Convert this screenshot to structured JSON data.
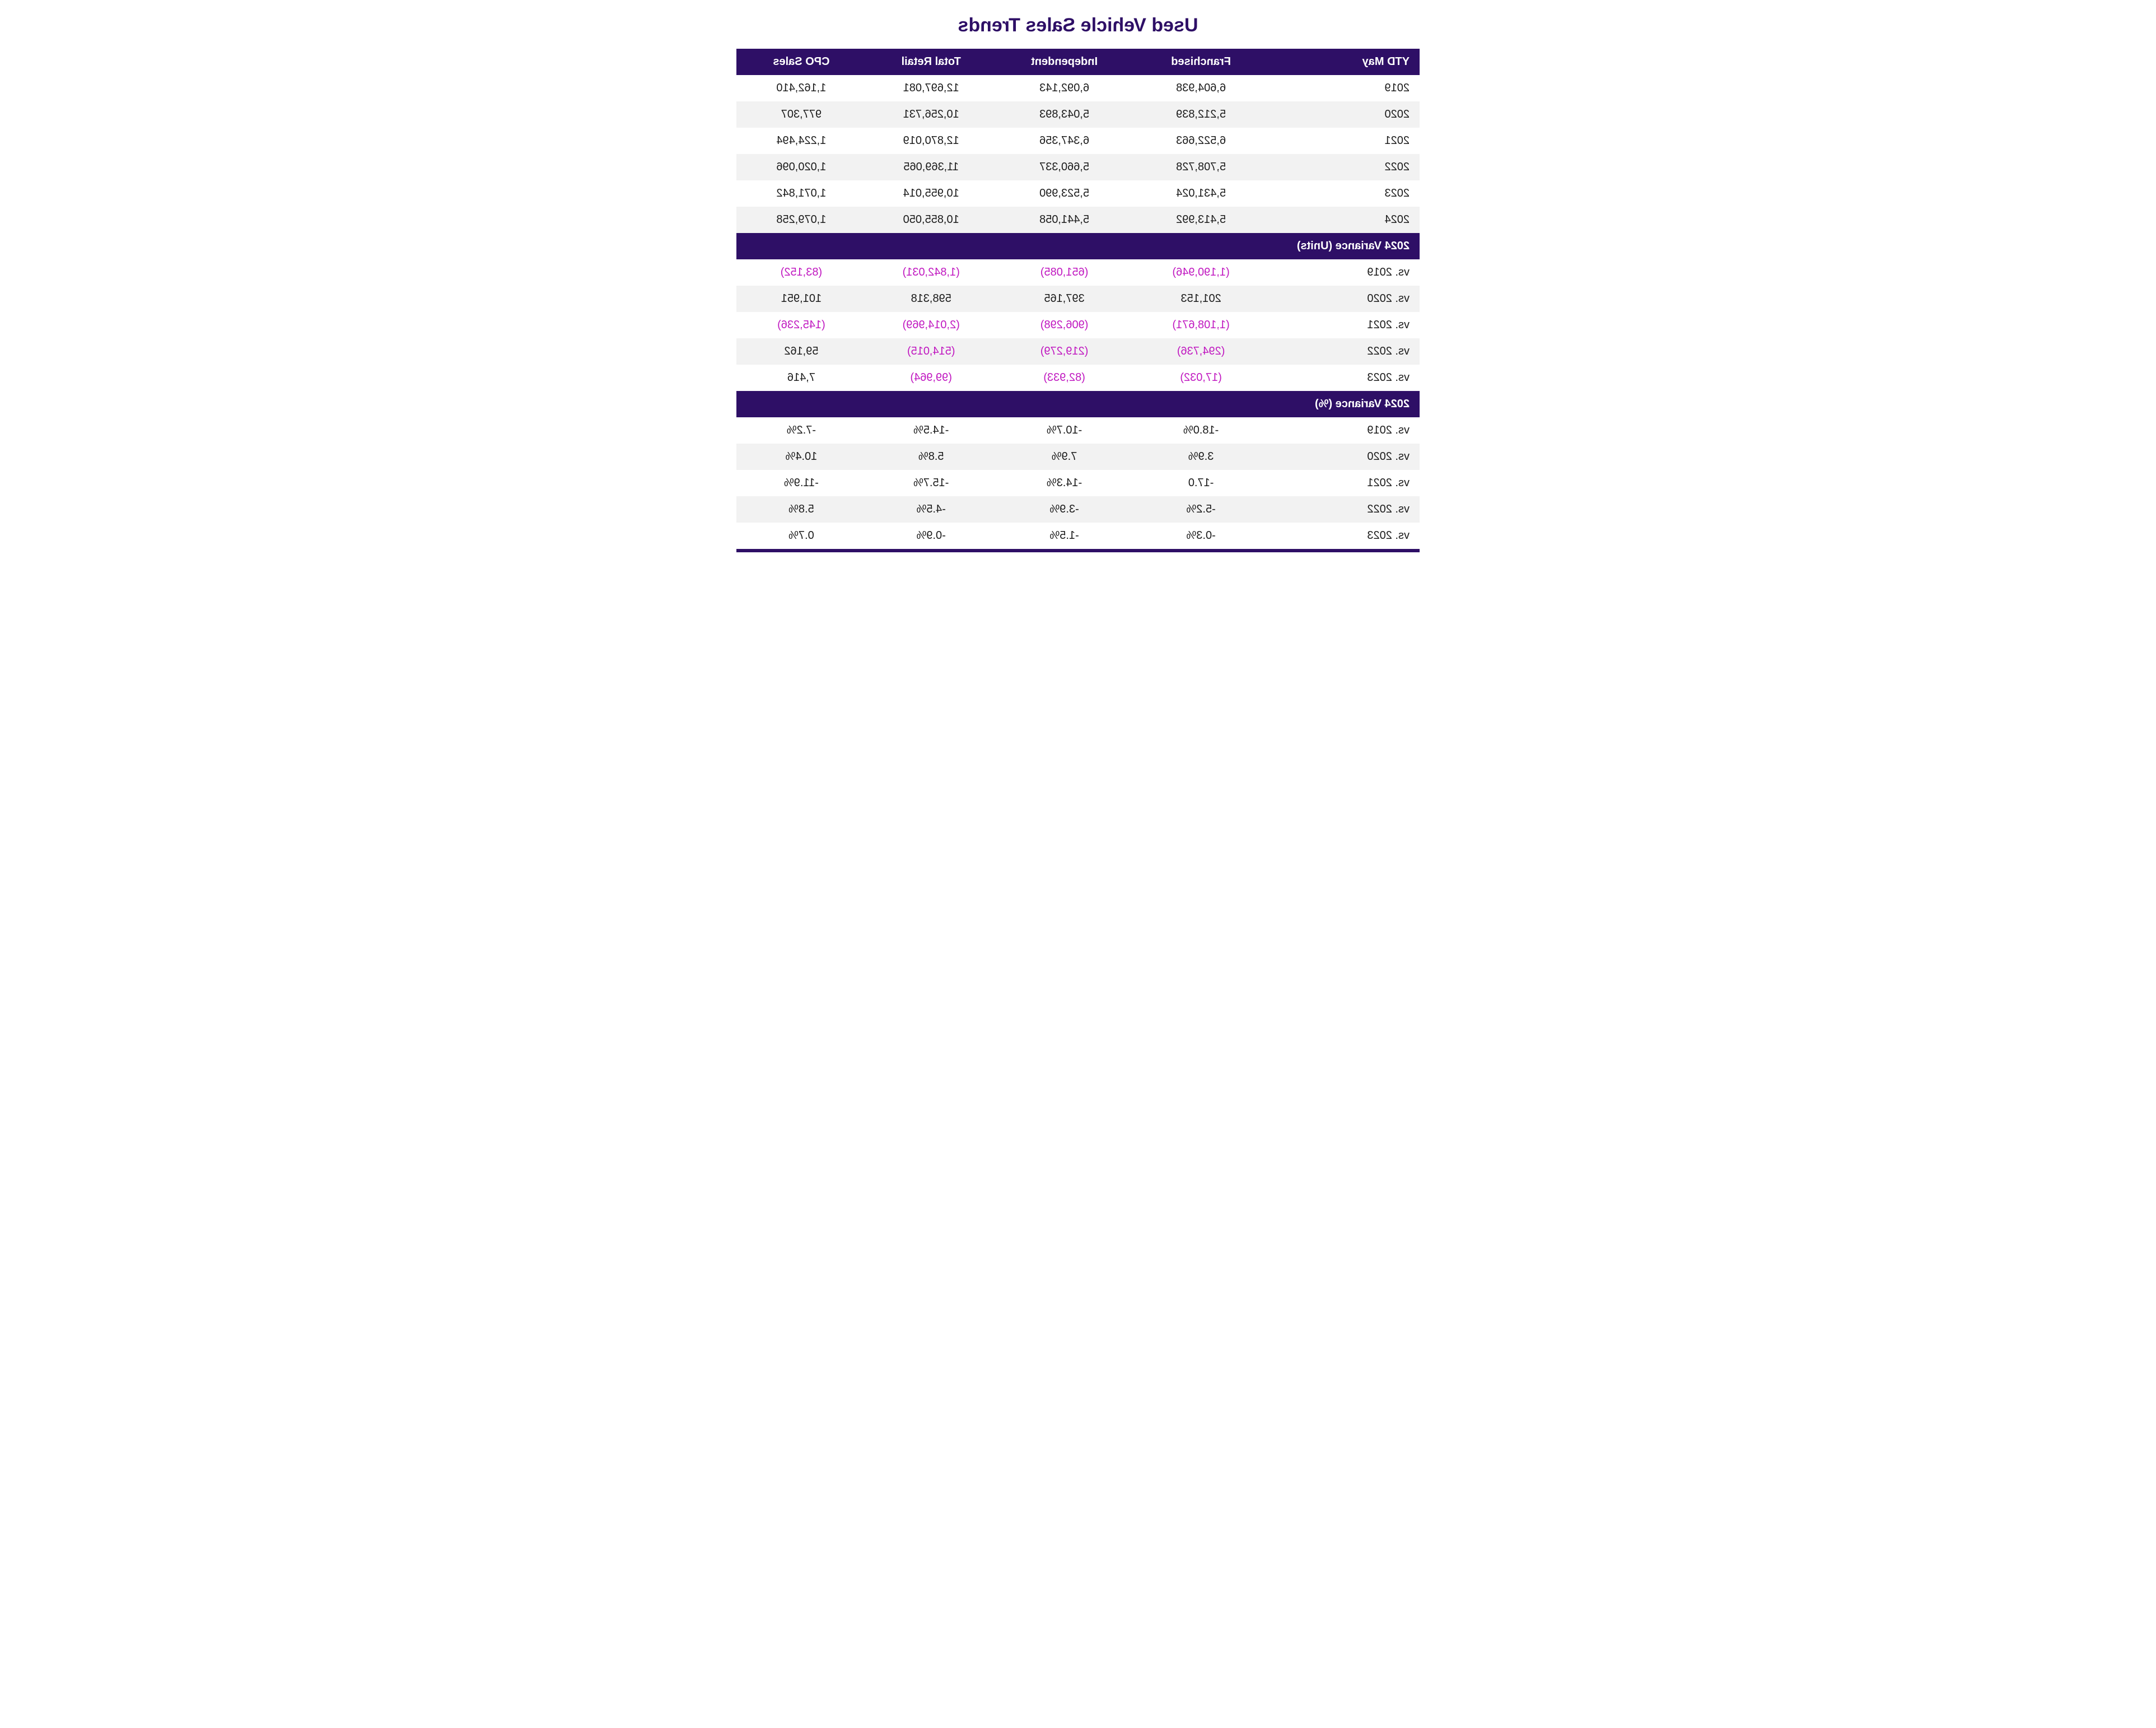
{
  "title": "Used Vehicle Sales Trends",
  "columns": [
    "YTD May",
    "Franchised",
    "Independent",
    "Total Retail",
    "CPO Sales"
  ],
  "section1_label": "2024 Variance (Units)",
  "section2_label": "2024 Variance (%)",
  "colors": {
    "header_bg": "#2e0f66",
    "header_fg": "#ffffff",
    "neg": "#c017c0",
    "stripe": "#f2f2f2",
    "title": "#2e0f66"
  },
  "rows_main": [
    {
      "label": "2019",
      "franchised": "6,604,938",
      "independent": "6,092,143",
      "total": "12,697,081",
      "cpo": "1,162,410"
    },
    {
      "label": "2020",
      "franchised": "5,212,839",
      "independent": "5,043,893",
      "total": "10,256,731",
      "cpo": "977,307"
    },
    {
      "label": "2021",
      "franchised": "6,522,663",
      "independent": "6,347,356",
      "total": "12,870,019",
      "cpo": "1,224,494"
    },
    {
      "label": "2022",
      "franchised": "5,708,728",
      "independent": "5,660,337",
      "total": "11,369,065",
      "cpo": "1,020,096"
    },
    {
      "label": "2023",
      "franchised": "5,431,024",
      "independent": "5,523,990",
      "total": "10,955,014",
      "cpo": "1,071,842"
    },
    {
      "label": "2024",
      "franchised": "5,413,992",
      "independent": "5,441,058",
      "total": "10,855,050",
      "cpo": "1,079,258"
    }
  ],
  "rows_var_units": [
    {
      "label": "vs. 2019",
      "franchised": "(1,190,946)",
      "independent": "(651,085)",
      "total": "(1,842,031)",
      "cpo": "(83,152)",
      "neg": {
        "franchised": true,
        "independent": true,
        "total": true,
        "cpo": true
      }
    },
    {
      "label": "vs. 2020",
      "franchised": "201,153",
      "independent": "397,165",
      "total": "598,318",
      "cpo": "101,951",
      "neg": {
        "franchised": false,
        "independent": false,
        "total": false,
        "cpo": false
      }
    },
    {
      "label": "vs. 2021",
      "franchised": "(1,108,671)",
      "independent": "(906,298)",
      "total": "(2,014,969)",
      "cpo": "(145,236)",
      "neg": {
        "franchised": true,
        "independent": true,
        "total": true,
        "cpo": true
      }
    },
    {
      "label": "vs. 2022",
      "franchised": "(294,736)",
      "independent": "(219,279)",
      "total": "(514,015)",
      "cpo": "59,162",
      "neg": {
        "franchised": true,
        "independent": true,
        "total": true,
        "cpo": false
      }
    },
    {
      "label": "vs. 2023",
      "franchised": "(17,032)",
      "independent": "(82,933)",
      "total": "(99,964)",
      "cpo": "7,416",
      "neg": {
        "franchised": true,
        "independent": true,
        "total": true,
        "cpo": false
      }
    }
  ],
  "rows_var_pct": [
    {
      "label": "vs. 2019",
      "franchised": "-18.0%",
      "independent": "-10.7%",
      "total": "-14.5%",
      "cpo": "-7.2%"
    },
    {
      "label": "vs. 2020",
      "franchised": "3.9%",
      "independent": "7.9%",
      "total": "5.8%",
      "cpo": "10.4%"
    },
    {
      "label": "vs. 2021",
      "franchised": "-17.0",
      "independent": "-14.3%",
      "total": "-15.7%",
      "cpo": "-11.9%"
    },
    {
      "label": "vs. 2022",
      "franchised": "-5.2%",
      "independent": "-3.9%",
      "total": "-4.5%",
      "cpo": "5.8%"
    },
    {
      "label": "vs. 2023",
      "franchised": "-0.3%",
      "independent": "-1.5%",
      "total": "-0.9%",
      "cpo": "0.7%"
    }
  ]
}
